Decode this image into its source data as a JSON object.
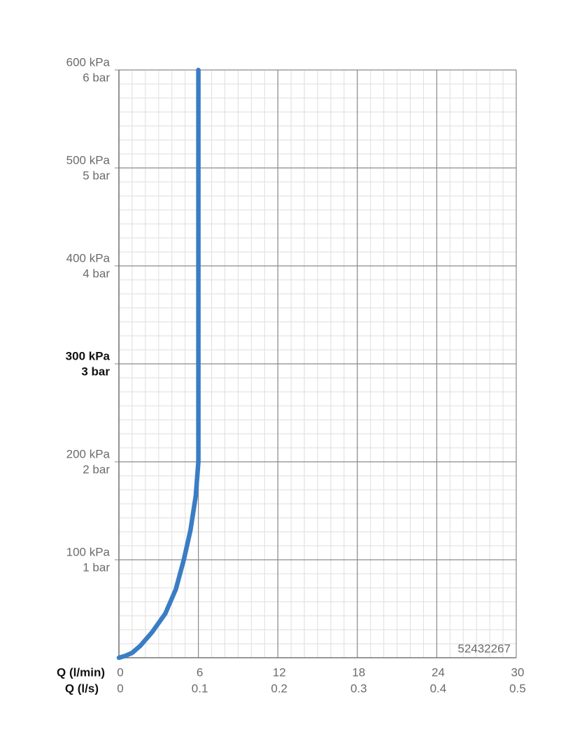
{
  "chart_data": {
    "type": "line",
    "x_label": "Q (l/min)",
    "x2_label": "Q (l/s)",
    "annotation": "52432267",
    "x": [
      0,
      0.5,
      1,
      1.6,
      2.5,
      3.5,
      4.3,
      4.9,
      5.4,
      5.8,
      6,
      6
    ],
    "series": [
      {
        "color": "#3a7dc4",
        "values": [
          0,
          2,
          5,
          12,
          26,
          45,
          70,
          100,
          130,
          165,
          200,
          600
        ]
      }
    ],
    "xlim": [
      0,
      30
    ],
    "xticks": [
      0,
      6,
      12,
      18,
      24,
      30
    ],
    "x2lim": [
      0,
      0.5
    ],
    "x2ticks": [
      0,
      0.1,
      0.2,
      0.3,
      0.4,
      0.5
    ],
    "ylim": [
      0,
      600
    ],
    "yticks": [
      {
        "value": 100,
        "label": "100 kPa"
      },
      {
        "value": 200,
        "label": "200 kPa"
      },
      {
        "value": 300,
        "label": "300 kPa"
      },
      {
        "value": 400,
        "label": "400 kPa"
      },
      {
        "value": 500,
        "label": "500 kPa"
      },
      {
        "value": 600,
        "label": "600 kPa"
      }
    ],
    "ytick_bar_labels": [
      "1 bar",
      "2 bar",
      "3 bar",
      "4 bar",
      "5 bar",
      "6 bar"
    ],
    "emphasized_ytick": 300,
    "grid": true
  }
}
